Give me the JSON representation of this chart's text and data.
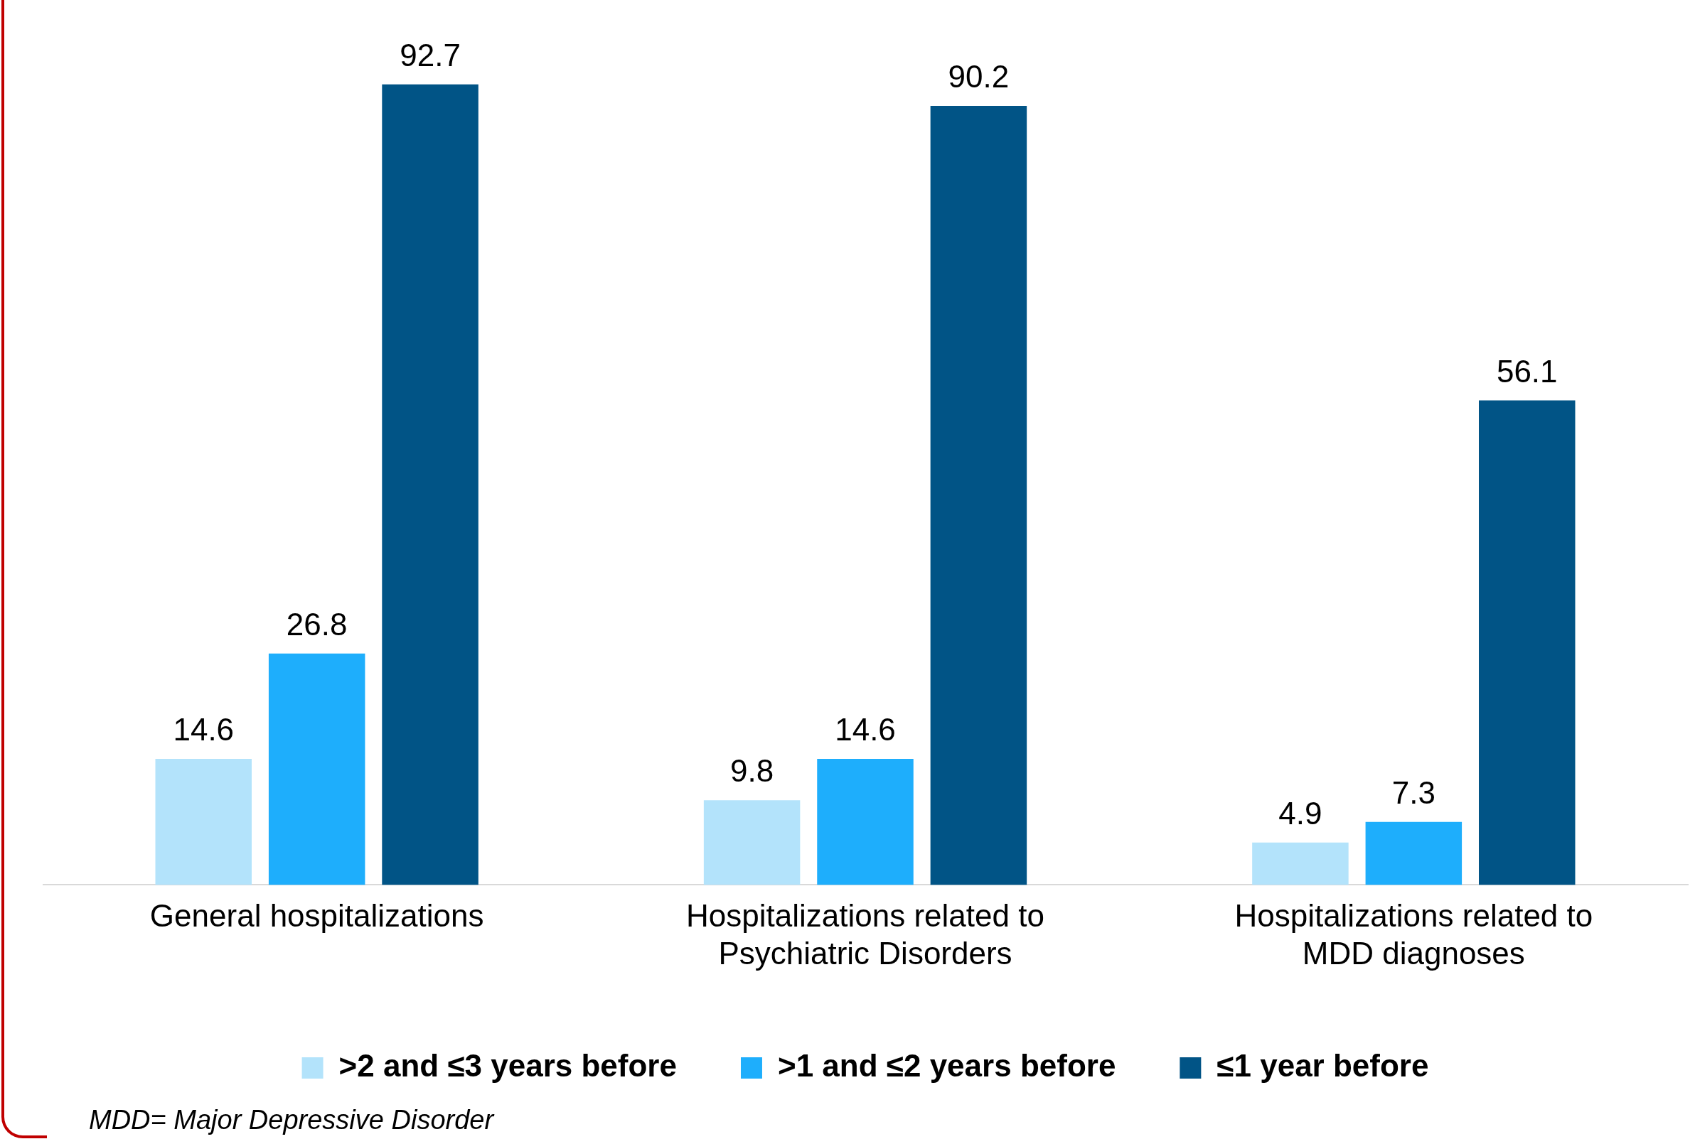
{
  "chart_data": {
    "type": "bar",
    "categories": [
      "General hospitalizations",
      "Hospitalizations related to Psychiatric Disorders",
      "Hospitalizations related to MDD diagnoses"
    ],
    "series": [
      {
        "name": ">2 and ≤3 years before",
        "color": "#b3e3fb",
        "values": [
          14.6,
          9.8,
          4.9
        ]
      },
      {
        "name": ">1 and ≤2 years before",
        "color": "#1eaefc",
        "values": [
          26.8,
          14.6,
          7.3
        ]
      },
      {
        "name": "≤1 year before",
        "color": "#015486",
        "values": [
          92.7,
          90.2,
          56.1
        ]
      }
    ],
    "data_labels": true,
    "legend": "bottom",
    "grid": false,
    "tick_labels": "x",
    "annotations": [
      "MDD= Major Depressive Disorder"
    ]
  }
}
